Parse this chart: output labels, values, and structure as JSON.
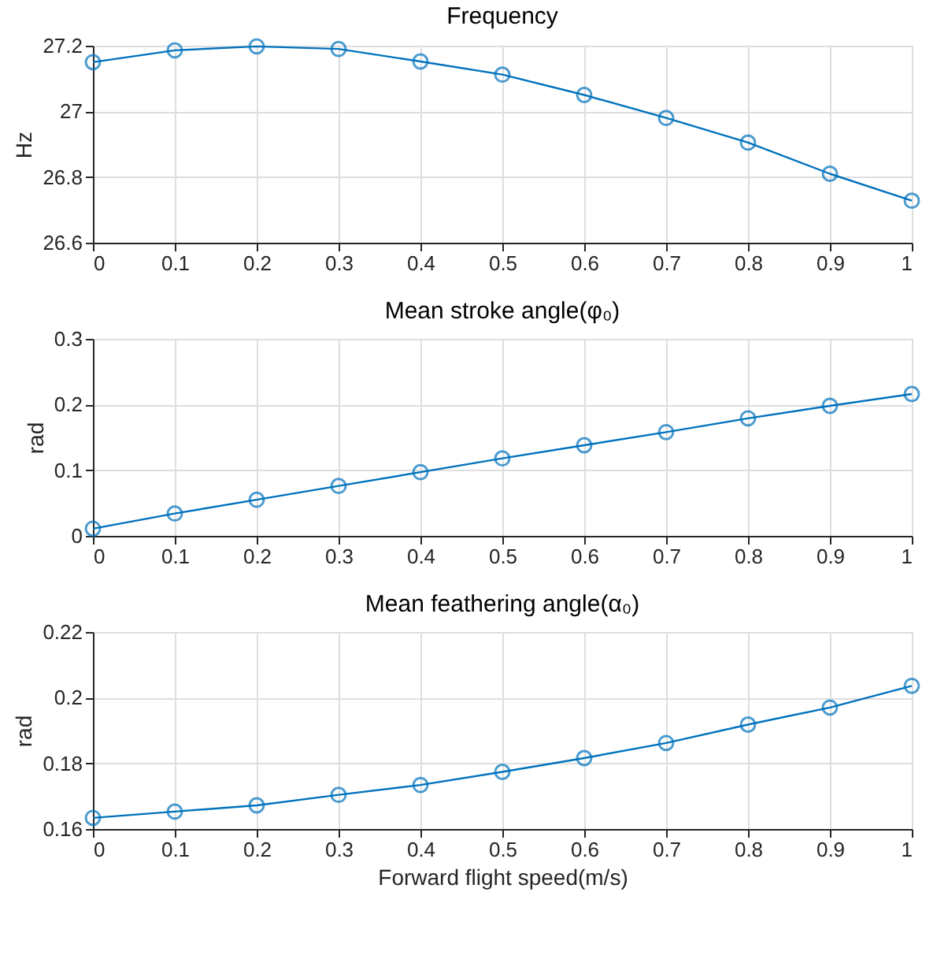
{
  "chart_data": [
    {
      "type": "line",
      "title": "Frequency",
      "ylabel": "Hz",
      "x": [
        0,
        0.1,
        0.2,
        0.3,
        0.4,
        0.5,
        0.6,
        0.7,
        0.8,
        0.9,
        1
      ],
      "xlim": [
        0,
        1
      ],
      "xticks": [
        0,
        0.1,
        0.2,
        0.3,
        0.4,
        0.5,
        0.6,
        0.7,
        0.8,
        0.9,
        1
      ],
      "ylim": [
        26.6,
        27.2
      ],
      "yticks": [
        26.6,
        26.8,
        27,
        27.2
      ],
      "grid": true,
      "marker": "circle",
      "line_style": "solid",
      "series": [
        {
          "color": "#0072bd",
          "values": [
            27.15,
            27.186,
            27.198,
            27.19,
            27.152,
            27.112,
            27.05,
            26.98,
            26.905,
            26.81,
            26.728
          ]
        }
      ]
    },
    {
      "type": "line",
      "title": "Mean stroke angle(φ₀)",
      "ylabel": "rad",
      "x": [
        0,
        0.1,
        0.2,
        0.3,
        0.4,
        0.5,
        0.6,
        0.7,
        0.8,
        0.9,
        1
      ],
      "xlim": [
        0,
        1
      ],
      "xticks": [
        0,
        0.1,
        0.2,
        0.3,
        0.4,
        0.5,
        0.6,
        0.7,
        0.8,
        0.9,
        1
      ],
      "ylim": [
        0,
        0.3
      ],
      "yticks": [
        0,
        0.1,
        0.2,
        0.3
      ],
      "grid": true,
      "marker": "circle",
      "line_style": "solid",
      "series": [
        {
          "color": "#0072bd",
          "values": [
            0.011,
            0.034,
            0.055,
            0.076,
            0.097,
            0.118,
            0.138,
            0.158,
            0.179,
            0.198,
            0.216
          ]
        }
      ]
    },
    {
      "type": "line",
      "title": "Mean feathering angle(α₀)",
      "ylabel": "rad",
      "xlabel": "Forward flight speed(m/s)",
      "x": [
        0,
        0.1,
        0.2,
        0.3,
        0.4,
        0.5,
        0.6,
        0.7,
        0.8,
        0.9,
        1
      ],
      "xlim": [
        0,
        1
      ],
      "xticks": [
        0,
        0.1,
        0.2,
        0.3,
        0.4,
        0.5,
        0.6,
        0.7,
        0.8,
        0.9,
        1
      ],
      "ylim": [
        0.16,
        0.22
      ],
      "yticks": [
        0.16,
        0.18,
        0.2,
        0.22
      ],
      "grid": true,
      "marker": "circle",
      "line_style": "solid",
      "series": [
        {
          "color": "#0072bd",
          "values": [
            0.1634,
            0.1653,
            0.1672,
            0.1704,
            0.1734,
            0.1774,
            0.1816,
            0.1862,
            0.1918,
            0.197,
            0.2036
          ]
        }
      ]
    }
  ]
}
